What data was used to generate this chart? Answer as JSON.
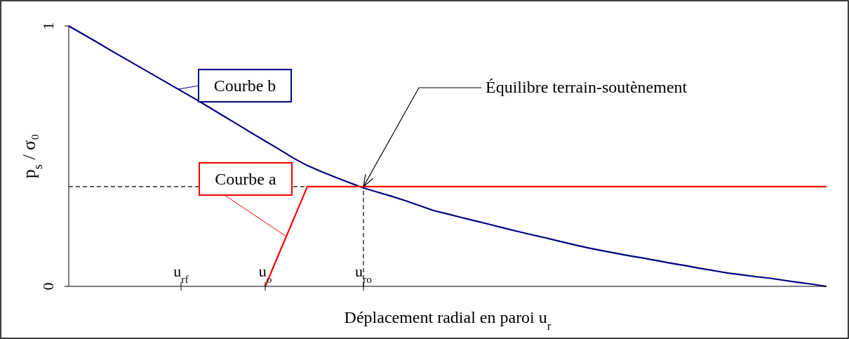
{
  "chart_data": {
    "type": "line",
    "ylabel": "p$_{s}$ / σ₀",
    "xlabel": "Déplacement radial en paroi u$_{r}$",
    "ylim": [
      0,
      1
    ],
    "yticks": [
      0,
      1
    ],
    "categories": [
      null,
      null,
      null,
      null,
      null,
      null,
      null,
      null,
      "u$_{rf}$",
      null,
      null,
      null,
      null,
      null,
      "u$_{o}$",
      null,
      null,
      null,
      null,
      null,
      null,
      "u$_{ro}$",
      null,
      null,
      null,
      null,
      null,
      null,
      null,
      null,
      null,
      null,
      null,
      null,
      null,
      null,
      null,
      null,
      null,
      null,
      null,
      null,
      null,
      null,
      null,
      null,
      null,
      null,
      null,
      null,
      null,
      null,
      null,
      null,
      null
    ],
    "series": [
      {
        "name": "Courbe b",
        "color": "#000080",
        "values": [
          1,
          0.969,
          0.938,
          0.906,
          0.875,
          0.844,
          0.813,
          0.782,
          0.751,
          0.72,
          0.688,
          0.655,
          0.623,
          0.59,
          0.558,
          0.526,
          0.493,
          0.464,
          0.441,
          0.419,
          0.398,
          0.378,
          0.362,
          0.346,
          0.329,
          0.31,
          0.291,
          0.278,
          0.264,
          0.251,
          0.238,
          0.224,
          0.211,
          0.198,
          0.186,
          0.173,
          0.16,
          0.148,
          0.137,
          0.127,
          0.117,
          0.108,
          0.098,
          0.088,
          0.079,
          0.069,
          0.06,
          0.051,
          0.044,
          0.037,
          0.031,
          0.023,
          0.015,
          0.008,
          0
        ]
      },
      {
        "name": "Courbe a",
        "color": "#ff0000",
        "values": [
          null,
          null,
          null,
          null,
          null,
          null,
          null,
          null,
          null,
          null,
          null,
          null,
          null,
          null,
          0,
          0.128,
          0.255,
          0.383,
          0.383,
          0.383,
          0.383,
          0.383,
          0.383,
          0.383,
          0.383,
          0.383,
          0.383,
          0.383,
          0.383,
          0.383,
          0.383,
          0.383,
          0.383,
          0.383,
          0.383,
          0.383,
          0.383,
          0.383,
          0.383,
          0.383,
          0.383,
          0.383,
          0.383,
          0.383,
          0.383,
          0.383,
          0.383,
          0.383,
          0.383,
          0.383,
          0.383,
          0.383,
          0.383,
          0.383,
          0.383
        ]
      }
    ],
    "ref_lines": [
      {
        "axis": "y",
        "value": 0.383,
        "line_style": "dashed"
      },
      {
        "axis": "x",
        "value": "u$_{ro}$",
        "line_style": "dashed"
      }
    ],
    "annotations": [
      {
        "text": "Équilibre terrain-soutènement",
        "x": "u$_{ro}$",
        "y": 0.383
      }
    ],
    "line_style": "solid"
  }
}
